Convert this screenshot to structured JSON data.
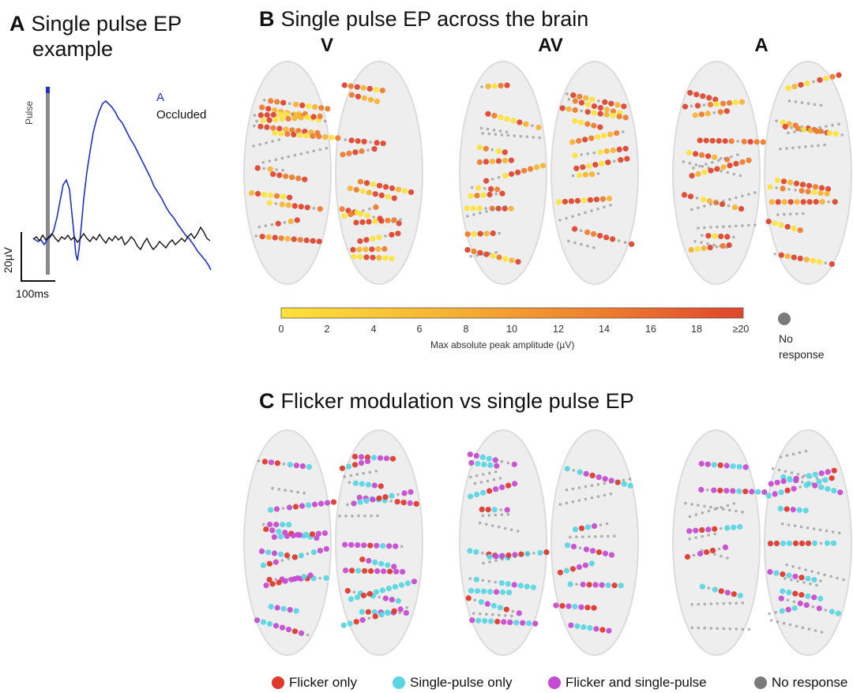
{
  "panel_a": {
    "letter": "A",
    "title_line1": "Single pulse EP",
    "title_line2": "example",
    "pulse_label": "Pulse",
    "legend_a": "A",
    "legend_occluded": "Occluded",
    "scale_y": "20µV",
    "scale_x": "100ms",
    "colors": {
      "A": "#1f2fd6",
      "Occluded": "#111111",
      "pulse": "#8a8a8a",
      "pulse_top": "#1f2fd6"
    }
  },
  "panel_b": {
    "letter": "B",
    "title": "Single pulse EP across the brain",
    "conditions": [
      "V",
      "AV",
      "A"
    ],
    "colorbar": {
      "ticks": [
        "0",
        "2",
        "4",
        "6",
        "8",
        "10",
        "12",
        "14",
        "16",
        "18",
        "≥20"
      ],
      "title": "Max absolute peak amplitude (µV)",
      "colors": [
        "#fde23a",
        "#f7b433",
        "#ee7d2e",
        "#e0442d"
      ]
    },
    "no_response": {
      "line1": "No",
      "line2": "response",
      "color": "#7a7a7a"
    }
  },
  "panel_c": {
    "letter": "C",
    "title": "Flicker modulation vs single pulse EP",
    "legend": [
      {
        "label": "Flicker only",
        "color": "#e0392b"
      },
      {
        "label": "Single-pulse only",
        "color": "#5ad6e3"
      },
      {
        "label": "Flicker and single-pulse",
        "color": "#c64bd2"
      },
      {
        "label": "No response",
        "color": "#7a7a7a"
      }
    ]
  }
}
